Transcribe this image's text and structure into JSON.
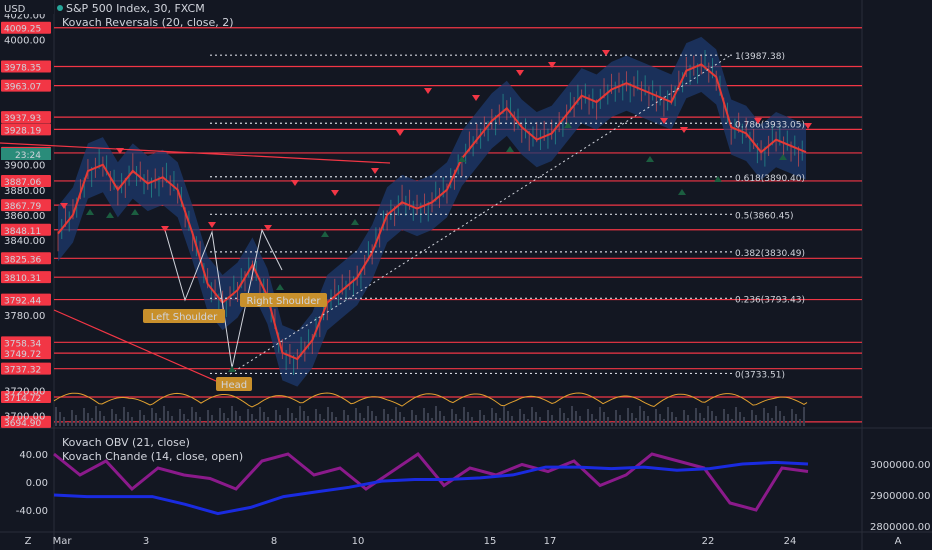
{
  "header": {
    "currency": "USD",
    "symbol_line": "S&P 500 Index, 30, FXCM",
    "indicator_line": "Kovach Reversals (20, close, 2)",
    "lower_line1": "Kovach OBV (21, close)",
    "lower_line2": "Kovach Chande (14, close, open)"
  },
  "bottom_bar": {
    "left_icon_label": "Z",
    "right_icon_label": "A"
  },
  "colors": {
    "background": "#131722",
    "level_line": "#f23645",
    "price_line": "#e53935",
    "band": "#1e3a6e",
    "obv": "#1a2be0",
    "chande": "#8b1a8b",
    "oscillator": "#e0a030",
    "label_tag": "#c8902c",
    "current_tag": "#2a8c7a"
  },
  "price_axis": {
    "ticks": [
      "4020.00",
      "4000.00",
      "3900.00",
      "3880.00",
      "3860.00",
      "3840.00",
      "3780.00",
      "3720.00",
      "3700.00"
    ],
    "current_label": "23:24",
    "red_labels": [
      "4009.25",
      "3978.35",
      "3963.07",
      "3937.93",
      "3928.19",
      "3909.41",
      "3887.06",
      "3867.79",
      "3848.11",
      "3825.36",
      "3810.31",
      "3792.44",
      "3758.34",
      "3749.72",
      "3737.32",
      "3714.72",
      "3694.90"
    ]
  },
  "fib_labels": [
    "1(3987.38)",
    "0.786(3933.05)",
    "0.618(3890.40)",
    "0.5(3860.45)",
    "0.382(3830.49)",
    "0.236(3793.43)",
    "0(3733.51)"
  ],
  "pattern_labels": {
    "left_shoulder": "Left Shoulder",
    "head": "Head",
    "right_shoulder": "Right Shoulder"
  },
  "lower_axis": {
    "left_ticks": [
      "40.00",
      "0.00",
      "-40.00"
    ],
    "right_ticks": [
      "3000000.00",
      "2900000.00",
      "2800000.00"
    ]
  },
  "x_axis": {
    "ticks": [
      "Mar",
      "3",
      "8",
      "10",
      "15",
      "17",
      "22",
      "24"
    ]
  },
  "chart_data": {
    "type": "line",
    "title": "S&P 500 Index, 30, FXCM",
    "horizontal_levels": [
      4009.25,
      3978.35,
      3963.07,
      3937.93,
      3928.19,
      3909.41,
      3887.06,
      3867.79,
      3848.11,
      3825.36,
      3810.31,
      3792.44,
      3758.34,
      3749.72,
      3737.32,
      3714.72,
      3694.9
    ],
    "fib_levels": [
      {
        "ratio": 1,
        "value": 3987.38
      },
      {
        "ratio": 0.786,
        "value": 3933.05
      },
      {
        "ratio": 0.618,
        "value": 3890.4
      },
      {
        "ratio": 0.5,
        "value": 3860.45
      },
      {
        "ratio": 0.382,
        "value": 3830.49
      },
      {
        "ratio": 0.236,
        "value": 3793.43
      },
      {
        "ratio": 0,
        "value": 3733.51
      }
    ],
    "x_ticks": [
      "Mar",
      "3",
      "8",
      "10",
      "15",
      "17",
      "22",
      "24"
    ],
    "price_series": {
      "x": [
        0,
        5,
        10,
        15,
        20,
        25,
        30,
        35,
        40,
        45,
        50,
        55,
        60,
        65,
        70,
        75,
        80,
        85,
        90,
        95,
        100,
        105,
        110,
        115,
        120,
        125,
        130,
        135,
        140,
        145,
        150,
        155,
        160,
        165,
        170,
        175,
        180,
        185,
        190,
        195,
        200,
        205,
        210,
        215,
        220,
        225,
        230,
        235,
        240,
        245,
        250
      ],
      "values": [
        3845,
        3860,
        3895,
        3900,
        3880,
        3895,
        3885,
        3890,
        3880,
        3845,
        3805,
        3790,
        3800,
        3820,
        3795,
        3750,
        3745,
        3760,
        3790,
        3800,
        3810,
        3830,
        3860,
        3870,
        3865,
        3870,
        3880,
        3905,
        3920,
        3935,
        3945,
        3930,
        3920,
        3925,
        3940,
        3955,
        3950,
        3960,
        3965,
        3960,
        3955,
        3950,
        3975,
        3980,
        3970,
        3930,
        3925,
        3910,
        3920,
        3915,
        3910
      ]
    },
    "obv_series": {
      "values": [
        2900000,
        2895000,
        2895000,
        2895000,
        2870000,
        2840000,
        2860000,
        2895000,
        2910000,
        2925000,
        2945000,
        2950000,
        2950000,
        2955000,
        2965000,
        2990000,
        2990000,
        2985000,
        2990000,
        2980000,
        2985000,
        3000000,
        3005000,
        3000000
      ]
    },
    "chande_series": {
      "values": [
        40,
        10,
        30,
        -10,
        20,
        10,
        5,
        -10,
        30,
        40,
        10,
        20,
        -10,
        15,
        40,
        -5,
        20,
        10,
        25,
        15,
        30,
        -5,
        10,
        40,
        30,
        20,
        -30,
        -40,
        20,
        15
      ]
    }
  }
}
